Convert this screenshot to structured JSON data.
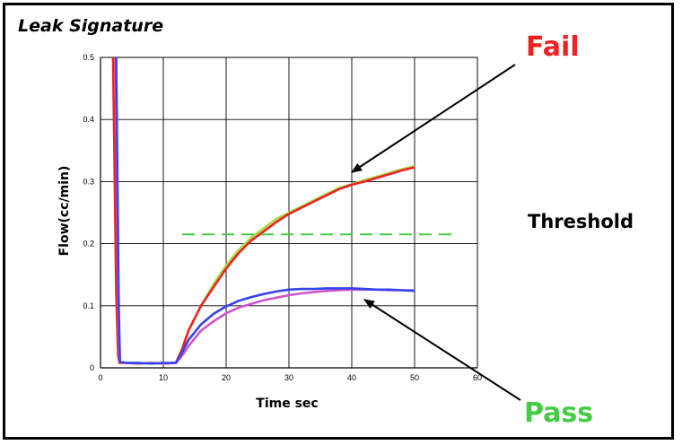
{
  "chart_data": {
    "type": "line",
    "title": "Leak Signature",
    "xlabel": "Time sec",
    "ylabel": "Flow(cc/min)",
    "xlim": [
      0,
      60
    ],
    "ylim": [
      0,
      0.5
    ],
    "xticks": [
      0,
      10,
      20,
      30,
      40,
      50,
      60
    ],
    "yticks": [
      0,
      0.1,
      0.2,
      0.3,
      0.4,
      0.5
    ],
    "ytick_labels": [
      "0",
      "0.1",
      "0.2",
      "0.3",
      "0.4",
      "0.5"
    ],
    "grid": true,
    "threshold": {
      "label": "Threshold",
      "y": 0.215,
      "x_start": 13,
      "x_end": 57,
      "color": "#44cc44"
    },
    "series": [
      {
        "group": "fail",
        "color": "#aadd44",
        "x": [
          2.4,
          2.6,
          2.8,
          3.0,
          4,
          6,
          8,
          10,
          12,
          13,
          14,
          16,
          18,
          20,
          22,
          24,
          26,
          28,
          30,
          32,
          34,
          36,
          38,
          40,
          42,
          44,
          46,
          48,
          50
        ],
        "y": [
          0.5,
          0.3,
          0.1,
          0.01,
          0.008,
          0.008,
          0.007,
          0.008,
          0.008,
          0.03,
          0.06,
          0.1,
          0.135,
          0.165,
          0.19,
          0.21,
          0.225,
          0.24,
          0.25,
          0.26,
          0.27,
          0.28,
          0.29,
          0.296,
          0.302,
          0.308,
          0.314,
          0.32,
          0.325
        ]
      },
      {
        "group": "fail",
        "color": "#ee2222",
        "x": [
          2.0,
          2.2,
          2.5,
          2.8,
          3.0,
          4,
          6,
          8,
          10,
          12,
          13,
          14,
          16,
          18,
          20,
          22,
          24,
          26,
          28,
          30,
          32,
          34,
          36,
          38,
          40,
          42,
          44,
          46,
          48,
          50
        ],
        "y": [
          0.5,
          0.35,
          0.12,
          0.02,
          0.008,
          0.008,
          0.007,
          0.008,
          0.007,
          0.008,
          0.03,
          0.06,
          0.1,
          0.13,
          0.16,
          0.185,
          0.205,
          0.22,
          0.235,
          0.248,
          0.258,
          0.268,
          0.278,
          0.288,
          0.295,
          0.3,
          0.306,
          0.312,
          0.318,
          0.323
        ]
      },
      {
        "group": "pass",
        "color": "#cc55cc",
        "x": [
          2.4,
          2.6,
          2.8,
          3.0,
          4,
          6,
          8,
          10,
          12,
          13,
          14,
          16,
          18,
          20,
          22,
          24,
          26,
          28,
          30,
          32,
          34,
          36,
          38,
          40,
          42,
          44,
          46,
          48,
          50
        ],
        "y": [
          0.5,
          0.3,
          0.1,
          0.01,
          0.008,
          0.007,
          0.008,
          0.007,
          0.008,
          0.02,
          0.035,
          0.06,
          0.075,
          0.088,
          0.097,
          0.103,
          0.109,
          0.113,
          0.117,
          0.12,
          0.122,
          0.124,
          0.125,
          0.126,
          0.126,
          0.126,
          0.125,
          0.125,
          0.125
        ]
      },
      {
        "group": "pass",
        "color": "#3344ee",
        "x": [
          2.5,
          2.7,
          2.9,
          3.1,
          4,
          6,
          8,
          10,
          12,
          13,
          14,
          16,
          18,
          20,
          22,
          24,
          26,
          28,
          30,
          32,
          34,
          36,
          38,
          40,
          42,
          44,
          46,
          48,
          50
        ],
        "y": [
          0.5,
          0.3,
          0.1,
          0.01,
          0.008,
          0.008,
          0.007,
          0.008,
          0.008,
          0.025,
          0.045,
          0.07,
          0.087,
          0.099,
          0.108,
          0.114,
          0.119,
          0.123,
          0.126,
          0.127,
          0.127,
          0.128,
          0.128,
          0.128,
          0.127,
          0.126,
          0.126,
          0.125,
          0.124
        ]
      }
    ],
    "annotations": [
      {
        "name": "fail-label",
        "text": "Fail",
        "color": "#ee2222",
        "arrow_to": [
          40,
          0.315
        ]
      },
      {
        "name": "pass-label",
        "text": "Pass",
        "color": "#44cc44",
        "arrow_to": [
          42,
          0.11
        ]
      }
    ]
  }
}
